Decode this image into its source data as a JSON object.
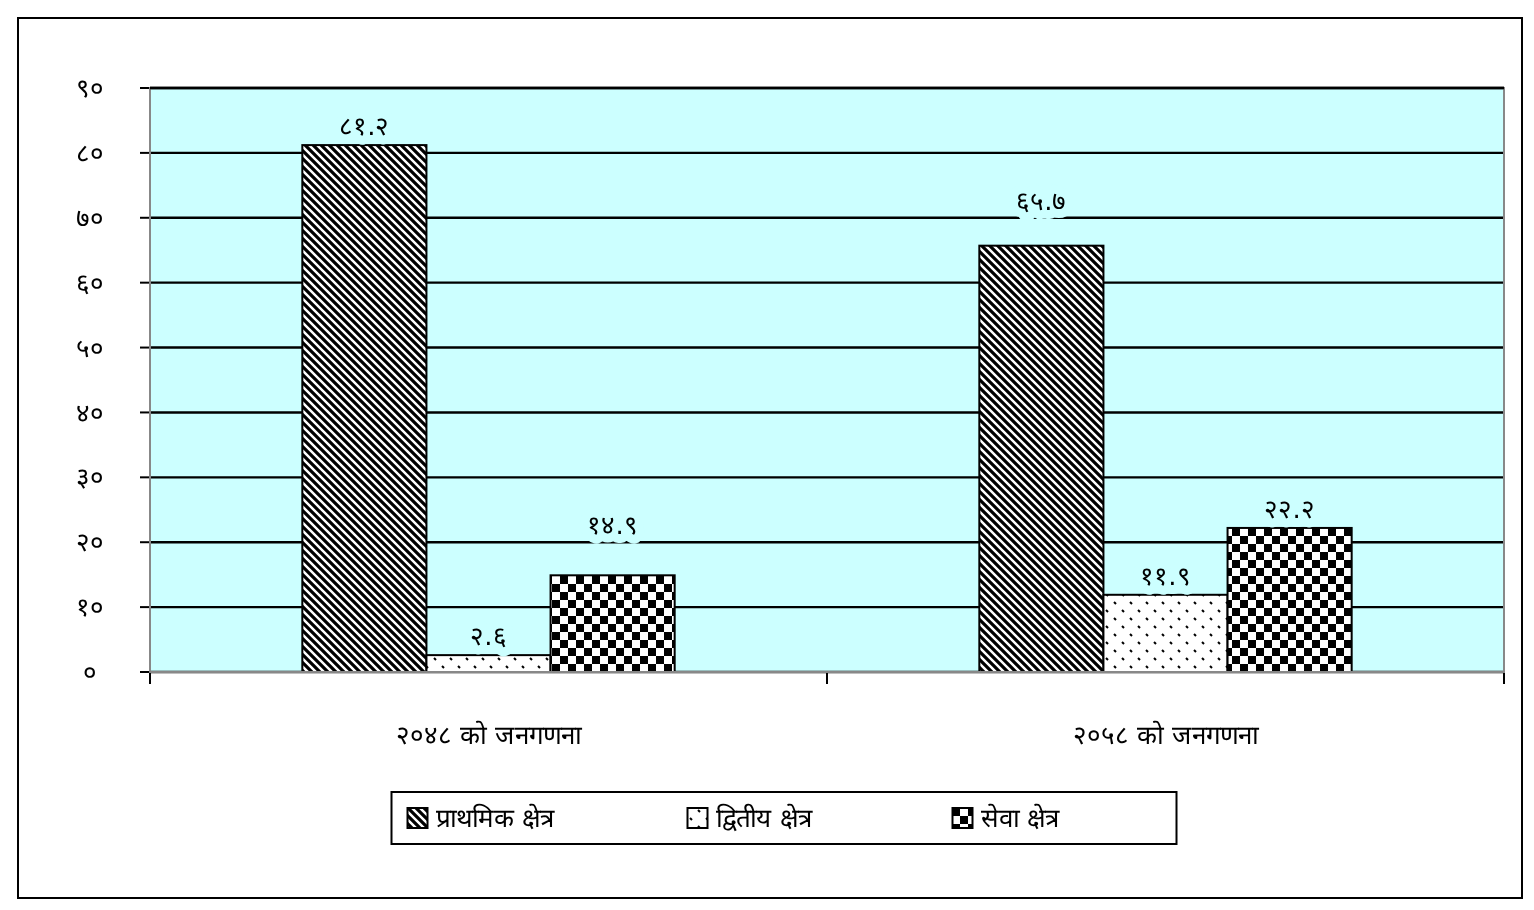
{
  "chart_data": {
    "type": "bar",
    "categories": [
      "२०४८ को जनगणना",
      "२०५८ को जनगणना"
    ],
    "series": [
      {
        "name": "प्राथमिक क्षेत्र",
        "color": "#000000",
        "values": [
          81.2,
          65.7
        ],
        "value_labels": [
          "८१.२",
          "६५.७"
        ]
      },
      {
        "name": "द्वितीय क्षेत्र",
        "color": "#000000",
        "values": [
          2.6,
          11.9
        ],
        "value_labels": [
          "२.६",
          "११.९"
        ]
      },
      {
        "name": "सेवा क्षेत्र",
        "color": "#000000",
        "values": [
          14.9,
          22.2
        ],
        "value_labels": [
          "१४.९",
          "२२.२"
        ]
      }
    ],
    "ylim": [
      0,
      90
    ],
    "yticks": [
      {
        "value": 0,
        "label": "०"
      },
      {
        "value": 10,
        "label": "१०"
      },
      {
        "value": 20,
        "label": "२०"
      },
      {
        "value": 30,
        "label": "३०"
      },
      {
        "value": 40,
        "label": "४०"
      },
      {
        "value": 50,
        "label": "५०"
      },
      {
        "value": 60,
        "label": "६०"
      },
      {
        "value": 70,
        "label": "७०"
      },
      {
        "value": 80,
        "label": "८०"
      },
      {
        "value": 90,
        "label": "९०"
      }
    ],
    "grid": "y",
    "legend": "bottom"
  }
}
